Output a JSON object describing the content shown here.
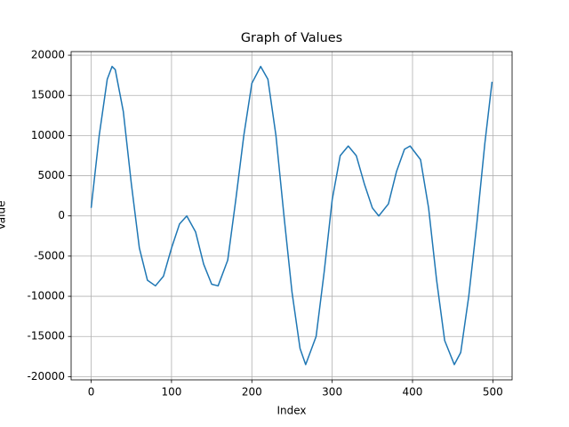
{
  "chart_data": {
    "type": "line",
    "title": "Graph of Values",
    "x_label": "Index",
    "y_label": "Value",
    "x": [
      0,
      10,
      20,
      26,
      30,
      40,
      50,
      60,
      70,
      80,
      90,
      100,
      110,
      119,
      130,
      140,
      150,
      158,
      170,
      180,
      190,
      200,
      211,
      220,
      230,
      240,
      250,
      260,
      267,
      280,
      290,
      300,
      310,
      320,
      330,
      340,
      350,
      358,
      370,
      380,
      390,
      397,
      410,
      420,
      430,
      440,
      452,
      460,
      470,
      480,
      490,
      499
    ],
    "series": [
      {
        "name": "values",
        "color": "#1f77b4",
        "values": [
          1000,
          10000,
          17000,
          18600,
          18200,
          13000,
          4000,
          -4000,
          -8000,
          -8700,
          -7500,
          -4000,
          -1000,
          0,
          -2000,
          -6000,
          -8500,
          -8700,
          -5500,
          2000,
          10000,
          16500,
          18600,
          17000,
          10000,
          0,
          -9500,
          -16500,
          -18500,
          -15000,
          -7000,
          2000,
          7500,
          8700,
          7500,
          4000,
          1000,
          0,
          1500,
          5500,
          8300,
          8700,
          7000,
          1000,
          -8000,
          -15500,
          -18500,
          -17000,
          -10000,
          -1000,
          9000,
          16700
        ]
      }
    ],
    "xlim": [
      -24.95,
      523.95
    ],
    "ylim": [
      -20400,
      20450
    ],
    "xticks": [
      0,
      100,
      200,
      300,
      400,
      500
    ],
    "yticks": [
      {
        "value": -20000,
        "label": "-20000"
      },
      {
        "value": -15000,
        "label": "-15000"
      },
      {
        "value": -10000,
        "label": "-10000"
      },
      {
        "value": -5000,
        "label": "-5000"
      },
      0,
      5000,
      10000,
      15000,
      20000
    ],
    "grid": true
  }
}
